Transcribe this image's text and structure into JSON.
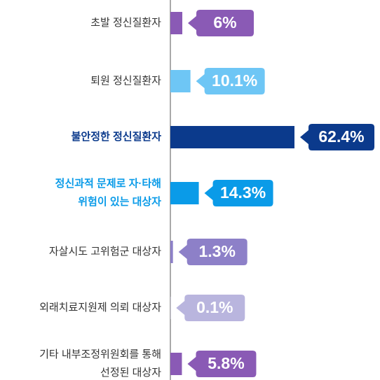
{
  "chart_data": {
    "type": "bar",
    "orientation": "horizontal",
    "categories": [
      [
        "초발 정신질환자"
      ],
      [
        "퇴원 정신질환자"
      ],
      [
        "불안정한 정신질환자"
      ],
      [
        "정신과적 문제로 자·타해",
        "위험이 있는 대상자"
      ],
      [
        "자살시도 고위험군 대상자"
      ],
      [
        "외래치료지원제 의뢰 대상자"
      ],
      [
        "기타 내부조정위원회를 통해",
        "선정된 대상자"
      ]
    ],
    "values": [
      6,
      10.1,
      62.4,
      14.3,
      1.3,
      0.1,
      5.8
    ],
    "value_labels": [
      "6%",
      "10.1%",
      "62.4%",
      "14.3%",
      "1.3%",
      "0.1%",
      "5.8%"
    ],
    "colors": [
      "#8a5ab5",
      "#6ec6f5",
      "#0b3a8c",
      "#0a9be8",
      "#8d80c8",
      "#b9b5de",
      "#8a5ab5"
    ],
    "label_colors": [
      "#333333",
      "#333333",
      "#0b3a8c",
      "#0a9be8",
      "#333333",
      "#333333",
      "#333333"
    ]
  }
}
